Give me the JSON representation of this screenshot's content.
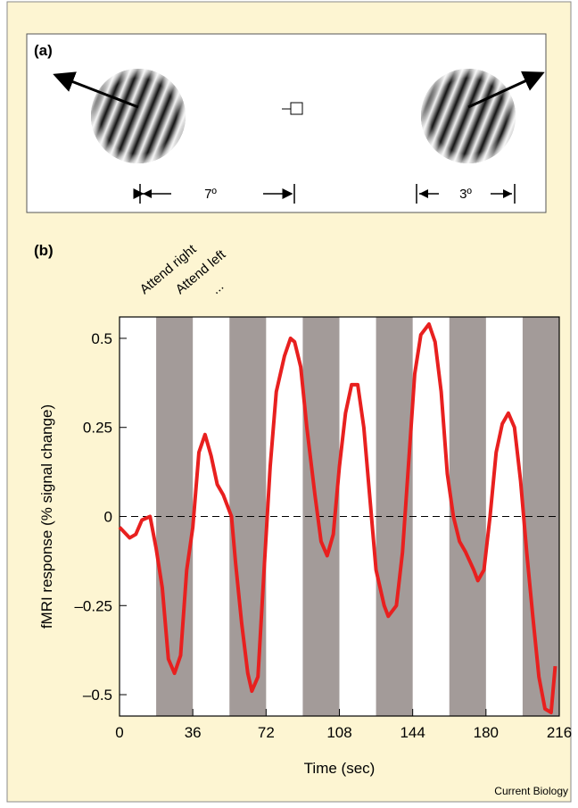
{
  "panel_a": {
    "label": "(a)",
    "dims": [
      "7º",
      "3º"
    ]
  },
  "chart_data": {
    "type": "line",
    "panel_label": "(b)",
    "annotations": [
      "Attend right",
      "Attend left",
      "..."
    ],
    "xlabel": "Time (sec)",
    "ylabel": "fMRI response (% signal change)",
    "x": [
      0,
      5,
      8,
      11,
      15,
      18,
      21,
      24,
      27,
      30,
      33,
      36,
      39,
      42,
      45,
      48,
      51,
      55,
      57,
      60,
      63,
      65,
      68,
      71,
      74,
      77,
      81,
      84,
      86,
      89,
      92,
      96,
      99,
      102,
      105,
      108,
      111,
      114,
      117,
      120,
      123,
      126,
      130,
      132,
      136,
      139,
      142,
      145,
      148,
      152,
      155,
      158,
      161,
      164,
      167,
      170,
      174,
      176,
      179,
      182,
      185,
      188,
      191,
      194,
      197,
      200,
      203,
      206,
      209,
      212,
      214
    ],
    "series": [
      {
        "color": "#e8201f",
        "values": [
          -0.03,
          -0.06,
          -0.05,
          -0.01,
          0.0,
          -0.09,
          -0.2,
          -0.4,
          -0.44,
          -0.39,
          -0.15,
          -0.03,
          0.18,
          0.23,
          0.17,
          0.09,
          0.06,
          0.0,
          -0.13,
          -0.3,
          -0.44,
          -0.49,
          -0.45,
          -0.15,
          0.14,
          0.35,
          0.45,
          0.5,
          0.49,
          0.42,
          0.25,
          0.06,
          -0.07,
          -0.11,
          -0.05,
          0.14,
          0.29,
          0.37,
          0.37,
          0.25,
          0.05,
          -0.15,
          -0.25,
          -0.28,
          -0.25,
          -0.1,
          0.15,
          0.4,
          0.51,
          0.54,
          0.49,
          0.35,
          0.12,
          0.0,
          -0.07,
          -0.1,
          -0.15,
          -0.18,
          -0.15,
          0.0,
          0.18,
          0.26,
          0.29,
          0.25,
          0.1,
          -0.1,
          -0.28,
          -0.45,
          -0.54,
          -0.55,
          -0.42
        ]
      }
    ],
    "xlim": [
      0,
      216
    ],
    "xticks": [
      0,
      36,
      72,
      108,
      144,
      180,
      216
    ],
    "ylim": [
      -0.56,
      0.56
    ],
    "yticks": [
      {
        "value": -0.5,
        "label": "–0.5"
      },
      {
        "value": -0.25,
        "label": "–0.25"
      },
      0,
      0.25,
      0.5
    ],
    "shaded": {
      "color": "#a39b99",
      "intervals": [
        [
          18,
          36
        ],
        [
          54,
          72
        ],
        [
          90,
          108
        ],
        [
          126,
          144
        ],
        [
          162,
          180
        ],
        [
          198,
          216
        ]
      ]
    },
    "reference_line": 0
  },
  "credit": "Current Biology"
}
